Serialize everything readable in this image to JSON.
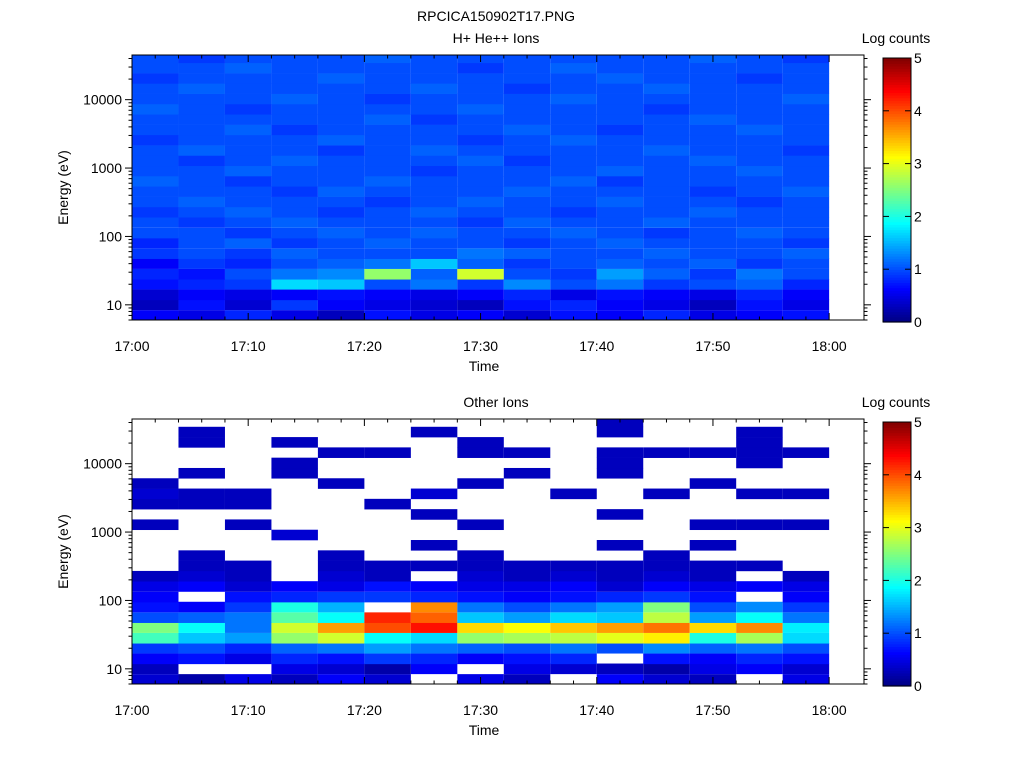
{
  "figure": {
    "title": "RPCICA150902T17.PNG"
  },
  "chart_data": [
    {
      "type": "heatmap",
      "title": "H+ He++ Ions",
      "xlabel": "Time",
      "ylabel": "Energy (eV)",
      "colorbar_label": "Log counts",
      "colorbar_range": [
        0,
        5
      ],
      "colorbar_ticks": [
        "0",
        "1",
        "2",
        "3",
        "4",
        "5"
      ],
      "colormap": "jet",
      "x_ticks": [
        "17:00",
        "17:10",
        "17:20",
        "17:30",
        "17:40",
        "17:50",
        "18:00"
      ],
      "x_range": [
        "17:00",
        "18:03"
      ],
      "y_scale": "log",
      "y_range": [
        6,
        45000
      ],
      "y_ticks": [
        "10",
        "100",
        "1000",
        "10000"
      ],
      "time_bins": [
        "17:02",
        "17:06",
        "17:10",
        "17:14",
        "17:18",
        "17:22",
        "17:26",
        "17:30",
        "17:34",
        "17:38",
        "17:42",
        "17:46",
        "17:50",
        "17:54",
        "17:58"
      ],
      "energy_bins_eV": [
        7,
        10,
        14,
        20,
        28,
        40,
        56,
        80,
        112,
        160,
        226,
        320,
        452,
        640,
        905,
        1280,
        1810,
        2560,
        3620,
        5120,
        7240,
        10240,
        14480,
        20480,
        28960,
        40960
      ],
      "log_counts": [
        [
          0.6,
          0.5,
          0.8,
          0.5,
          0.3,
          0.7,
          0.5,
          0.6,
          0.4,
          0.7,
          0.6,
          0.8,
          0.5,
          0.6,
          0.7
        ],
        [
          0.3,
          0.7,
          0.4,
          0.9,
          0.6,
          0.5,
          0.4,
          0.3,
          0.7,
          0.8,
          0.6,
          0.5,
          0.3,
          0.7,
          0.5
        ],
        [
          0.4,
          0.6,
          0.5,
          0.6,
          0.7,
          0.6,
          0.5,
          0.6,
          0.8,
          0.5,
          0.7,
          0.6,
          0.5,
          0.8,
          0.6
        ],
        [
          0.7,
          0.8,
          0.9,
          1.7,
          1.6,
          1.0,
          1.2,
          0.9,
          1.3,
          1.0,
          1.2,
          0.9,
          1.0,
          1.1,
          0.8
        ],
        [
          0.8,
          0.7,
          1.0,
          1.2,
          1.3,
          2.6,
          1.1,
          2.9,
          1.0,
          0.9,
          1.4,
          1.1,
          0.9,
          1.2,
          1.0
        ],
        [
          0.6,
          0.9,
          0.8,
          1.0,
          1.1,
          1.2,
          1.6,
          1.1,
          0.9,
          1.0,
          1.1,
          1.0,
          1.1,
          0.9,
          1.0
        ],
        [
          0.9,
          1.0,
          0.9,
          1.1,
          1.0,
          1.0,
          1.0,
          1.2,
          1.1,
          1.0,
          1.0,
          1.1,
          1.0,
          1.0,
          1.1
        ],
        [
          0.8,
          1.0,
          1.1,
          0.9,
          1.0,
          1.1,
          1.0,
          1.0,
          0.9,
          1.0,
          1.1,
          1.0,
          1.0,
          1.0,
          0.9
        ],
        [
          1.0,
          1.0,
          0.9,
          1.0,
          1.1,
          1.0,
          1.1,
          1.0,
          1.0,
          1.1,
          1.0,
          0.9,
          1.0,
          1.1,
          1.0
        ],
        [
          1.0,
          0.9,
          1.0,
          1.1,
          1.0,
          1.0,
          1.0,
          0.9,
          1.1,
          1.0,
          1.0,
          1.1,
          1.0,
          1.0,
          1.0
        ],
        [
          0.9,
          1.0,
          1.1,
          1.0,
          0.9,
          1.0,
          1.1,
          1.0,
          1.0,
          0.9,
          1.0,
          1.0,
          1.1,
          1.0,
          1.0
        ],
        [
          1.0,
          1.1,
          1.0,
          1.0,
          1.0,
          0.9,
          1.0,
          1.1,
          1.0,
          1.0,
          1.1,
          1.0,
          1.0,
          0.9,
          1.0
        ],
        [
          1.0,
          1.0,
          1.0,
          0.9,
          1.1,
          1.0,
          1.0,
          1.0,
          1.1,
          1.0,
          1.0,
          1.0,
          0.9,
          1.0,
          1.1
        ],
        [
          1.1,
          1.0,
          0.9,
          1.0,
          1.0,
          1.1,
          1.0,
          1.0,
          1.0,
          1.1,
          0.9,
          1.0,
          1.0,
          1.0,
          1.0
        ],
        [
          1.0,
          1.0,
          1.1,
          1.0,
          1.0,
          1.0,
          0.9,
          1.0,
          1.0,
          1.0,
          1.1,
          1.0,
          1.0,
          1.1,
          1.0
        ],
        [
          1.0,
          0.9,
          1.0,
          1.1,
          1.0,
          1.0,
          1.0,
          1.1,
          0.9,
          1.0,
          1.0,
          1.0,
          1.1,
          1.0,
          1.0
        ],
        [
          1.0,
          1.1,
          1.0,
          1.0,
          0.9,
          1.0,
          1.1,
          1.0,
          1.0,
          1.0,
          1.0,
          1.1,
          1.0,
          1.0,
          0.9
        ],
        [
          0.9,
          1.0,
          1.0,
          1.0,
          1.1,
          1.0,
          1.0,
          0.9,
          1.0,
          1.1,
          1.0,
          1.0,
          1.0,
          1.0,
          1.0
        ],
        [
          1.0,
          1.0,
          1.1,
          0.9,
          1.0,
          1.0,
          1.0,
          1.0,
          1.1,
          1.0,
          0.9,
          1.0,
          1.0,
          1.1,
          1.0
        ],
        [
          1.0,
          1.0,
          1.0,
          1.0,
          1.0,
          1.1,
          0.9,
          1.0,
          1.0,
          1.0,
          1.0,
          1.0,
          1.1,
          1.0,
          1.0
        ],
        [
          1.1,
          1.0,
          0.9,
          1.0,
          1.0,
          1.0,
          1.0,
          1.1,
          1.0,
          1.0,
          1.0,
          0.9,
          1.0,
          1.0,
          1.0
        ],
        [
          1.0,
          1.0,
          1.0,
          1.1,
          1.0,
          0.9,
          1.0,
          1.0,
          1.0,
          1.1,
          1.0,
          1.0,
          1.0,
          1.0,
          1.1
        ],
        [
          1.0,
          1.1,
          1.0,
          1.0,
          1.0,
          1.0,
          1.1,
          1.0,
          0.9,
          1.0,
          1.0,
          1.1,
          1.0,
          1.0,
          1.0
        ],
        [
          0.9,
          1.0,
          1.0,
          1.0,
          1.1,
          1.0,
          1.0,
          1.0,
          1.0,
          1.0,
          1.1,
          1.0,
          1.0,
          0.9,
          1.0
        ],
        [
          1.0,
          1.0,
          1.1,
          1.0,
          1.0,
          1.0,
          1.0,
          0.9,
          1.0,
          1.1,
          1.0,
          1.0,
          1.0,
          1.0,
          1.0
        ],
        [
          1.0,
          0.9,
          1.0,
          1.0,
          1.0,
          1.1,
          1.0,
          1.0,
          1.0,
          1.0,
          1.0,
          1.0,
          1.1,
          1.0,
          0.9
        ]
      ]
    },
    {
      "type": "heatmap",
      "title": "Other Ions",
      "xlabel": "Time",
      "ylabel": "Energy (eV)",
      "colorbar_label": "Log counts",
      "colorbar_range": [
        0,
        5
      ],
      "colorbar_ticks": [
        "0",
        "1",
        "2",
        "3",
        "4",
        "5"
      ],
      "colormap": "jet",
      "x_ticks": [
        "17:00",
        "17:10",
        "17:20",
        "17:30",
        "17:40",
        "17:50",
        "18:00"
      ],
      "x_range": [
        "17:00",
        "18:03"
      ],
      "y_scale": "log",
      "y_range": [
        6,
        45000
      ],
      "y_ticks": [
        "10",
        "100",
        "1000",
        "10000"
      ],
      "time_bins": [
        "17:02",
        "17:06",
        "17:10",
        "17:14",
        "17:18",
        "17:22",
        "17:26",
        "17:30",
        "17:34",
        "17:38",
        "17:42",
        "17:46",
        "17:50",
        "17:54",
        "17:58"
      ],
      "energy_bins_eV": [
        7,
        10,
        14,
        20,
        28,
        40,
        56,
        80,
        112,
        160,
        226,
        320,
        452,
        640,
        905,
        1280,
        1810,
        2560,
        3620,
        5120,
        7240,
        10240,
        14480,
        20480,
        28960,
        40960
      ],
      "log_counts": [
        [
          0.4,
          0.2,
          0.5,
          0.3,
          0.6,
          0.4,
          null,
          0.5,
          0.3,
          null,
          0.6,
          0.4,
          0.3,
          null,
          0.5
        ],
        [
          0.3,
          null,
          null,
          0.5,
          0.4,
          0.2,
          0.6,
          null,
          0.5,
          0.4,
          0.3,
          0.2,
          0.5,
          0.6,
          0.4
        ],
        [
          0.6,
          0.7,
          0.5,
          0.8,
          0.7,
          0.9,
          0.8,
          0.6,
          0.7,
          0.8,
          null,
          0.7,
          0.6,
          0.8,
          0.7
        ],
        [
          0.9,
          1.0,
          0.8,
          1.1,
          1.2,
          1.4,
          1.2,
          1.1,
          1.0,
          1.2,
          1.0,
          1.3,
          1.1,
          1.2,
          1.0
        ],
        [
          2.2,
          1.6,
          1.4,
          2.6,
          2.9,
          1.9,
          1.7,
          2.6,
          2.7,
          2.8,
          3.0,
          3.2,
          2.0,
          2.7,
          1.7
        ],
        [
          2.5,
          1.9,
          1.2,
          2.9,
          3.6,
          4.0,
          4.3,
          3.3,
          3.1,
          3.4,
          3.6,
          3.8,
          3.3,
          3.7,
          1.8
        ],
        [
          1.0,
          1.1,
          1.2,
          2.3,
          1.9,
          4.2,
          3.9,
          1.6,
          1.4,
          1.7,
          1.6,
          2.8,
          1.4,
          1.9,
          1.2
        ],
        [
          0.7,
          0.6,
          0.9,
          2.0,
          1.5,
          null,
          3.7,
          1.2,
          1.0,
          1.2,
          1.4,
          2.5,
          1.0,
          1.3,
          0.9
        ],
        [
          0.6,
          null,
          0.7,
          0.8,
          0.9,
          0.9,
          0.8,
          0.7,
          0.6,
          0.7,
          0.8,
          0.9,
          0.7,
          null,
          0.6
        ],
        [
          0.5,
          0.6,
          0.4,
          0.6,
          0.5,
          0.7,
          0.6,
          0.5,
          0.5,
          0.6,
          0.4,
          0.6,
          0.5,
          0.6,
          0.5
        ],
        [
          0.3,
          0.4,
          0.3,
          null,
          0.4,
          0.3,
          null,
          0.4,
          0.3,
          0.4,
          0.3,
          0.4,
          0.3,
          null,
          0.3
        ],
        [
          null,
          0.3,
          0.3,
          null,
          0.3,
          0.3,
          0.3,
          0.3,
          0.3,
          0.3,
          0.3,
          0.3,
          0.3,
          0.3,
          null
        ],
        [
          null,
          0.3,
          null,
          null,
          0.3,
          null,
          null,
          0.3,
          null,
          null,
          null,
          0.3,
          null,
          null,
          null
        ],
        [
          null,
          null,
          null,
          null,
          null,
          null,
          0.3,
          null,
          null,
          null,
          0.3,
          null,
          0.3,
          null,
          null
        ],
        [
          null,
          null,
          null,
          0.4,
          null,
          null,
          null,
          null,
          null,
          null,
          null,
          null,
          null,
          null,
          null
        ],
        [
          0.3,
          null,
          0.3,
          null,
          null,
          null,
          null,
          0.3,
          null,
          null,
          null,
          null,
          0.3,
          0.3,
          0.3
        ],
        [
          null,
          null,
          null,
          null,
          null,
          null,
          0.3,
          null,
          null,
          null,
          0.3,
          null,
          null,
          null,
          null
        ],
        [
          0.3,
          0.3,
          0.3,
          null,
          null,
          0.3,
          null,
          null,
          null,
          null,
          null,
          null,
          null,
          null,
          null
        ],
        [
          0.4,
          0.3,
          0.3,
          null,
          null,
          null,
          0.4,
          null,
          null,
          0.3,
          null,
          0.3,
          null,
          0.3,
          0.3
        ],
        [
          0.3,
          null,
          null,
          null,
          0.3,
          null,
          null,
          0.3,
          null,
          null,
          null,
          null,
          0.3,
          null,
          null
        ],
        [
          null,
          0.3,
          null,
          0.3,
          null,
          null,
          null,
          null,
          0.3,
          null,
          0.3,
          null,
          null,
          null,
          null
        ],
        [
          null,
          null,
          null,
          0.3,
          null,
          null,
          null,
          null,
          null,
          null,
          0.3,
          null,
          null,
          0.3,
          null
        ],
        [
          null,
          null,
          null,
          null,
          0.3,
          0.3,
          null,
          0.3,
          0.3,
          null,
          0.3,
          0.3,
          0.3,
          0.3,
          0.3
        ],
        [
          null,
          0.3,
          null,
          0.3,
          null,
          null,
          null,
          0.3,
          null,
          null,
          null,
          null,
          null,
          0.3,
          null
        ],
        [
          null,
          0.3,
          null,
          null,
          null,
          null,
          0.3,
          null,
          null,
          null,
          0.3,
          null,
          null,
          0.3,
          null
        ],
        [
          null,
          null,
          null,
          null,
          null,
          null,
          null,
          null,
          null,
          null,
          0.3,
          null,
          null,
          null,
          null
        ]
      ]
    }
  ]
}
